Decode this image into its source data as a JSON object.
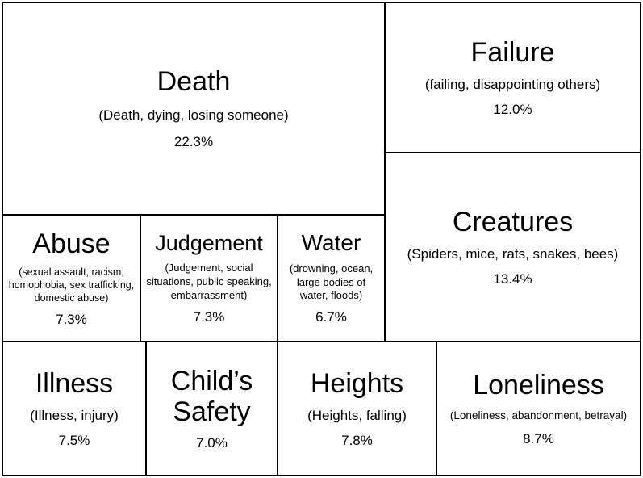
{
  "chart_data": {
    "type": "treemap",
    "items": [
      {
        "name": "Death",
        "description": "(Death, dying, losing someone)",
        "value": 22.3,
        "value_label": "22.3%"
      },
      {
        "name": "Failure",
        "description": "(failing, disappointing others)",
        "value": 12.0,
        "value_label": "12.0%"
      },
      {
        "name": "Creatures",
        "description": "(Spiders, mice, rats, snakes, bees)",
        "value": 13.4,
        "value_label": "13.4%"
      },
      {
        "name": "Abuse",
        "description": "(sexual assault, racism, homophobia, sex trafficking, domestic abuse)",
        "value": 7.3,
        "value_label": "7.3%"
      },
      {
        "name": "Judgement",
        "description": "(Judgement, social situations, public speaking, embarrassment)",
        "value": 7.3,
        "value_label": "7.3%"
      },
      {
        "name": "Water",
        "description": "(drowning, ocean, large bodies of water, floods)",
        "value": 6.7,
        "value_label": "6.7%"
      },
      {
        "name": "Illness",
        "description": "(Illness, injury)",
        "value": 7.5,
        "value_label": "7.5%"
      },
      {
        "name": "Child’s Safety",
        "description": "",
        "value": 7.0,
        "value_label": "7.0%"
      },
      {
        "name": "Heights",
        "description": "(Heights, falling)",
        "value": 7.8,
        "value_label": "7.8%"
      },
      {
        "name": "Loneliness",
        "description": "(Loneliness, abandonment, betrayal)",
        "value": 8.7,
        "value_label": "8.7%"
      }
    ]
  }
}
